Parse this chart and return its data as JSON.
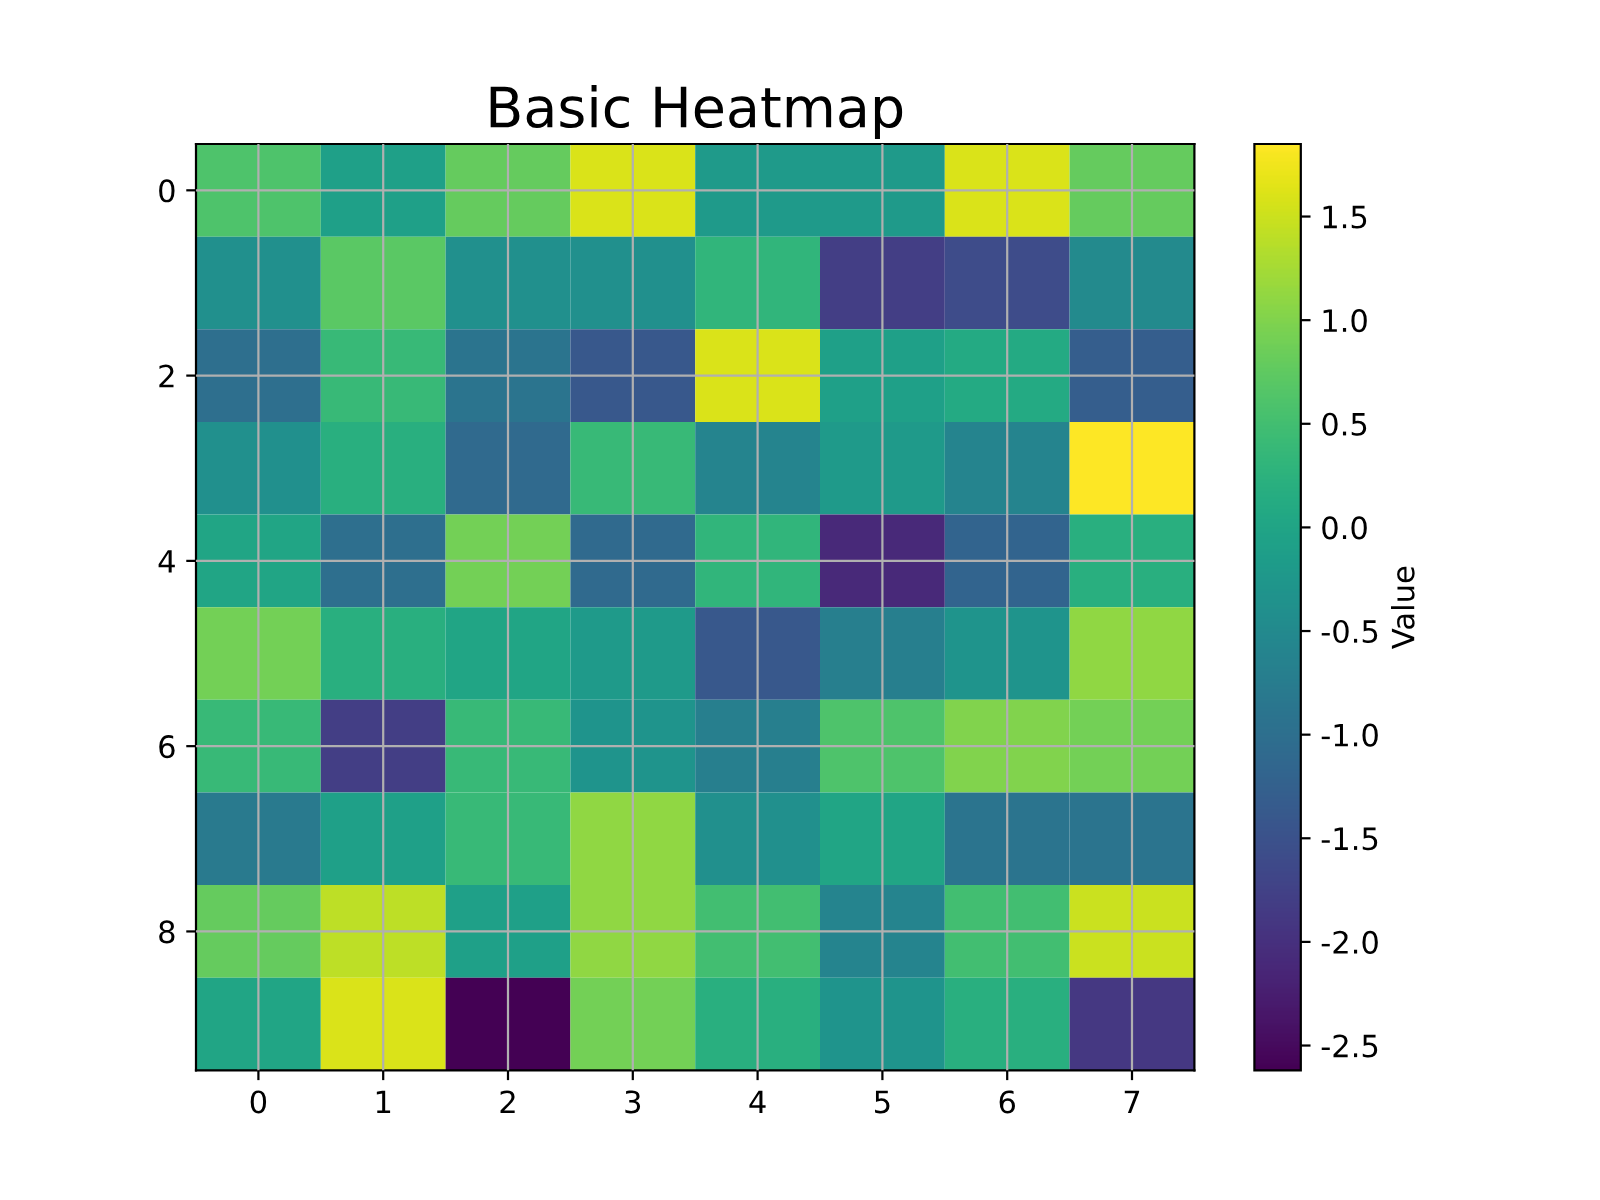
{
  "chart_data": {
    "type": "heatmap",
    "title": "Basic Heatmap",
    "clabel": "Value",
    "categories": [
      "0",
      "1",
      "2",
      "3",
      "4",
      "5",
      "6",
      "7"
    ],
    "y_categories": [
      "0",
      null,
      "2",
      null,
      "4",
      null,
      "6",
      null,
      "8",
      null
    ],
    "cells": [
      [
        0.6,
        -0.1,
        0.8,
        1.6,
        -0.2,
        -0.2,
        1.6,
        0.8
      ],
      [
        -0.4,
        0.7,
        -0.4,
        -0.4,
        0.3,
        -1.8,
        -1.6,
        -0.5
      ],
      [
        -1.0,
        0.4,
        -0.9,
        -1.4,
        1.6,
        -0.1,
        0.1,
        -1.3
      ],
      [
        -0.4,
        0.2,
        -1.1,
        0.4,
        -0.6,
        -0.2,
        -0.6,
        1.85
      ],
      [
        0.0,
        -1.0,
        0.9,
        -1.1,
        0.3,
        -2.1,
        -1.2,
        0.2
      ],
      [
        0.9,
        0.2,
        0.0,
        -0.2,
        -1.4,
        -0.7,
        -0.3,
        1.1
      ],
      [
        0.4,
        -1.8,
        0.4,
        -0.3,
        -0.7,
        0.6,
        1.0,
        0.9
      ],
      [
        -0.8,
        -0.1,
        0.4,
        1.1,
        -0.4,
        0.0,
        -0.9,
        -0.9
      ],
      [
        0.8,
        1.4,
        -0.1,
        1.1,
        0.5,
        -0.6,
        0.5,
        1.5
      ],
      [
        0.0,
        1.6,
        -2.62,
        0.9,
        0.2,
        -0.3,
        0.2,
        -1.9
      ]
    ],
    "clim": [
      -2.62,
      1.85
    ],
    "cticks": [
      -2.5,
      {
        "value": -2,
        "label": "-2.0"
      },
      -1.5,
      {
        "value": -1,
        "label": "-1.0"
      },
      -0.5,
      {
        "value": 0,
        "label": "0.0"
      },
      0.5,
      {
        "value": 1,
        "label": "1.0"
      },
      1.5
    ],
    "grid": true
  }
}
